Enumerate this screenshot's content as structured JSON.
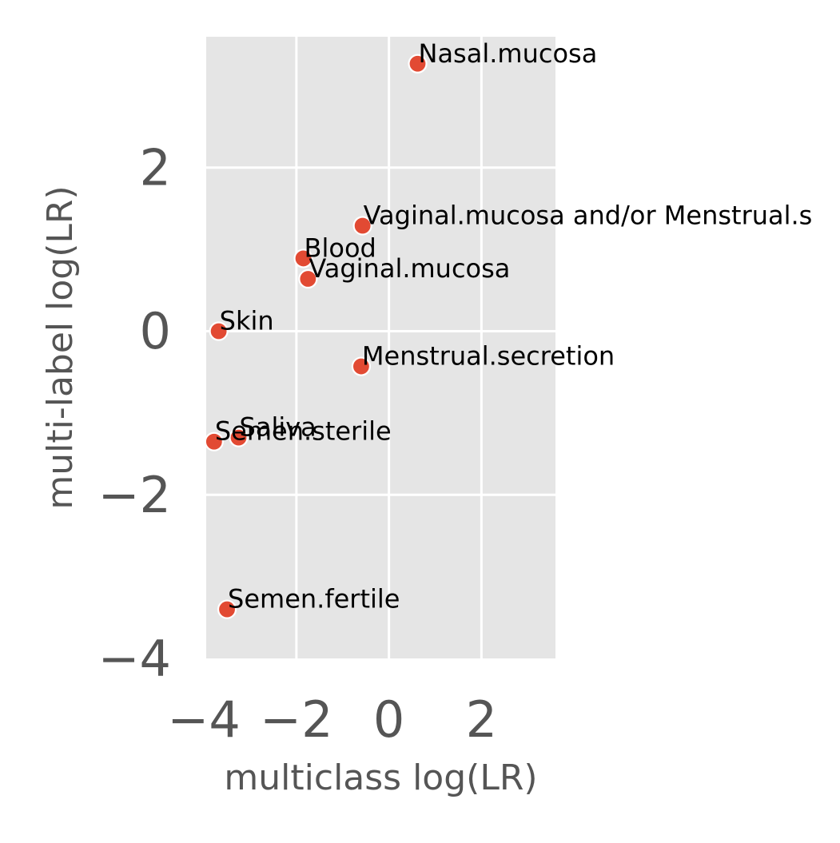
{
  "chart_data": {
    "type": "scatter",
    "title": "",
    "xlabel": "multiclass log(LR)",
    "ylabel": "multi-label log(LR)",
    "xlim": [
      -3.95,
      3.6
    ],
    "ylim": [
      -4.0,
      3.6
    ],
    "xticks": [
      -4,
      -2,
      0,
      2
    ],
    "yticks": [
      -4,
      -2,
      0,
      2
    ],
    "xtick_labels": [
      "−4",
      "−2",
      "0",
      "2"
    ],
    "ytick_labels": [
      "−4",
      "−2",
      "0",
      "2"
    ],
    "grid": true,
    "point_color": "#e24a33",
    "panel_color": "#e5e5e5",
    "grid_color": "#ffffff",
    "points": [
      {
        "label": "Nasal.mucosa",
        "x": 0.62,
        "y": 3.27
      },
      {
        "label": "Vaginal.mucosa and/or Menstrual.s",
        "x": -0.57,
        "y": 1.29
      },
      {
        "label": "Blood",
        "x": -1.85,
        "y": 0.89
      },
      {
        "label": "Vaginal.mucosa",
        "x": -1.75,
        "y": 0.64
      },
      {
        "label": "Skin",
        "x": -3.68,
        "y": 0.0
      },
      {
        "label": "Menstrual.secretion",
        "x": -0.6,
        "y": -0.43
      },
      {
        "label": "Saliva",
        "x": -3.25,
        "y": -1.3
      },
      {
        "label": "Semen.sterile",
        "x": -3.78,
        "y": -1.35
      },
      {
        "label": "Semen.fertile",
        "x": -3.5,
        "y": -3.4
      }
    ]
  }
}
